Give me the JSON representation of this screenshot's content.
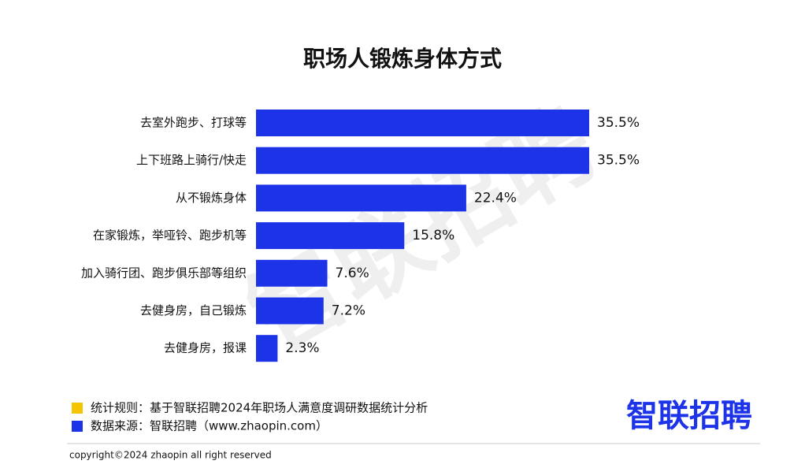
{
  "chart_data": {
    "type": "bar",
    "title": "职场人锻炼身体方式",
    "categories": [
      "去室外跑步、打球等",
      "上下班路上骑行/快走",
      "从不锻炼身体",
      "在家锻炼，举哑铃、跑步机等",
      "加入骑行团、跑步俱乐部等组织",
      "去健身房，自己锻炼",
      "去健身房，报课"
    ],
    "values": [
      35.5,
      35.5,
      22.4,
      15.8,
      7.6,
      7.2,
      2.3
    ],
    "value_labels": [
      "35.5%",
      "35.5%",
      "22.4%",
      "15.8%",
      "7.6%",
      "7.2%",
      "2.3%"
    ],
    "color": "#1c33e8",
    "notes": [
      {
        "text": "统计规则：基于智联招聘2024年职场人满意度调研数据统计分析",
        "color": "#f5c400"
      },
      {
        "text": "数据来源：智联招聘（www.zhaopin.com）",
        "color": "#1c33e8"
      }
    ],
    "logo": "智联招聘",
    "watermark": "智联招聘",
    "copyright": "copyright©2024 zhaopin all right reserved"
  }
}
